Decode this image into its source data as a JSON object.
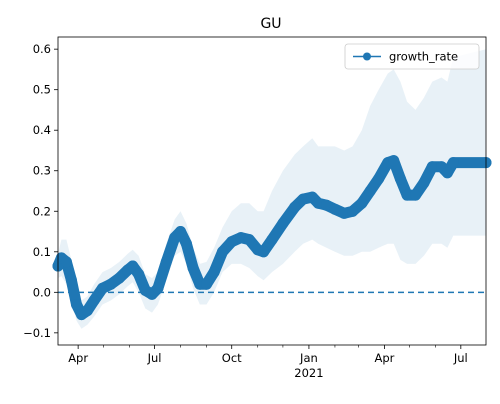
{
  "chart_data": {
    "type": "line",
    "title": "GU",
    "xlabel": "",
    "ylabel": "",
    "xlim": [
      "2020-03-08",
      "2021-07-31"
    ],
    "ylim": [
      -0.13,
      0.63
    ],
    "y_ticks": [
      -0.1,
      0.0,
      0.1,
      0.2,
      0.3,
      0.4,
      0.5,
      0.6
    ],
    "y_tick_labels": [
      "−0.1",
      "0.0",
      "0.1",
      "0.2",
      "0.3",
      "0.4",
      "0.5",
      "0.6"
    ],
    "x_major_ticks": [
      {
        "date": "2020-04-01",
        "label": "Apr",
        "sublabel": ""
      },
      {
        "date": "2020-07-01",
        "label": "Jul",
        "sublabel": ""
      },
      {
        "date": "2020-10-01",
        "label": "Oct",
        "sublabel": ""
      },
      {
        "date": "2021-01-01",
        "label": "Jan",
        "sublabel": "2021"
      },
      {
        "date": "2021-04-01",
        "label": "Apr",
        "sublabel": ""
      },
      {
        "date": "2021-07-01",
        "label": "Jul",
        "sublabel": ""
      }
    ],
    "x_minor_ticks": [
      "2020-05-01",
      "2020-06-01",
      "2020-08-01",
      "2020-09-01",
      "2020-11-01",
      "2020-12-01",
      "2021-02-01",
      "2021-03-01",
      "2021-05-01",
      "2021-06-01"
    ],
    "legend": {
      "position": "upper-right",
      "entries": [
        "growth_rate"
      ]
    },
    "grid": false,
    "reference_line": {
      "y": 0.0,
      "style": "dashed"
    },
    "series": [
      {
        "name": "growth_rate",
        "color": "#1f77b4",
        "marker": "o",
        "points": [
          [
            "2020-03-08",
            0.065,
            0.095,
            0.035
          ],
          [
            "2020-03-12",
            0.085,
            0.13,
            0.04
          ],
          [
            "2020-03-18",
            0.075,
            0.13,
            0.02
          ],
          [
            "2020-03-24",
            0.03,
            0.08,
            -0.02
          ],
          [
            "2020-03-30",
            -0.03,
            0.01,
            -0.07
          ],
          [
            "2020-04-05",
            -0.055,
            -0.02,
            -0.09
          ],
          [
            "2020-04-12",
            -0.045,
            -0.01,
            -0.08
          ],
          [
            "2020-04-20",
            -0.02,
            0.02,
            -0.06
          ],
          [
            "2020-04-30",
            0.01,
            0.05,
            -0.03
          ],
          [
            "2020-05-10",
            0.02,
            0.06,
            -0.02
          ],
          [
            "2020-05-20",
            0.035,
            0.075,
            -0.005
          ],
          [
            "2020-05-30",
            0.055,
            0.095,
            0.015
          ],
          [
            "2020-06-05",
            0.065,
            0.105,
            0.025
          ],
          [
            "2020-06-12",
            0.045,
            0.09,
            0.0
          ],
          [
            "2020-06-20",
            0.005,
            0.045,
            -0.04
          ],
          [
            "2020-06-28",
            -0.005,
            0.035,
            -0.05
          ],
          [
            "2020-07-05",
            0.01,
            0.05,
            -0.03
          ],
          [
            "2020-07-15",
            0.075,
            0.12,
            0.03
          ],
          [
            "2020-07-25",
            0.135,
            0.18,
            0.09
          ],
          [
            "2020-08-01",
            0.15,
            0.2,
            0.1
          ],
          [
            "2020-08-08",
            0.12,
            0.17,
            0.07
          ],
          [
            "2020-08-16",
            0.06,
            0.11,
            0.01
          ],
          [
            "2020-08-24",
            0.02,
            0.07,
            -0.03
          ],
          [
            "2020-09-01",
            0.02,
            0.075,
            -0.03
          ],
          [
            "2020-09-10",
            0.05,
            0.11,
            0.0
          ],
          [
            "2020-09-20",
            0.1,
            0.16,
            0.05
          ],
          [
            "2020-10-01",
            0.125,
            0.2,
            0.07
          ],
          [
            "2020-10-12",
            0.135,
            0.22,
            0.07
          ],
          [
            "2020-10-22",
            0.13,
            0.22,
            0.06
          ],
          [
            "2020-11-01",
            0.105,
            0.2,
            0.04
          ],
          [
            "2020-11-08",
            0.1,
            0.2,
            0.03
          ],
          [
            "2020-11-18",
            0.13,
            0.25,
            0.05
          ],
          [
            "2020-12-01",
            0.17,
            0.3,
            0.07
          ],
          [
            "2020-12-15",
            0.21,
            0.34,
            0.1
          ],
          [
            "2020-12-25",
            0.23,
            0.36,
            0.12
          ],
          [
            "2021-01-05",
            0.235,
            0.38,
            0.13
          ],
          [
            "2021-01-12",
            0.22,
            0.36,
            0.12
          ],
          [
            "2021-01-22",
            0.215,
            0.36,
            0.11
          ],
          [
            "2021-02-01",
            0.205,
            0.36,
            0.1
          ],
          [
            "2021-02-12",
            0.195,
            0.35,
            0.09
          ],
          [
            "2021-02-22",
            0.2,
            0.36,
            0.09
          ],
          [
            "2021-03-05",
            0.22,
            0.4,
            0.1
          ],
          [
            "2021-03-15",
            0.25,
            0.46,
            0.1
          ],
          [
            "2021-03-25",
            0.28,
            0.5,
            0.11
          ],
          [
            "2021-04-05",
            0.32,
            0.54,
            0.12
          ],
          [
            "2021-04-12",
            0.325,
            0.55,
            0.12
          ],
          [
            "2021-04-20",
            0.28,
            0.52,
            0.08
          ],
          [
            "2021-04-28",
            0.24,
            0.47,
            0.07
          ],
          [
            "2021-05-08",
            0.24,
            0.45,
            0.07
          ],
          [
            "2021-05-18",
            0.27,
            0.48,
            0.09
          ],
          [
            "2021-05-28",
            0.31,
            0.52,
            0.12
          ],
          [
            "2021-06-08",
            0.31,
            0.53,
            0.12
          ],
          [
            "2021-06-15",
            0.295,
            0.52,
            0.11
          ],
          [
            "2021-06-22",
            0.32,
            0.58,
            0.14
          ],
          [
            "2021-07-31",
            0.32,
            0.6,
            0.14
          ]
        ]
      }
    ]
  }
}
